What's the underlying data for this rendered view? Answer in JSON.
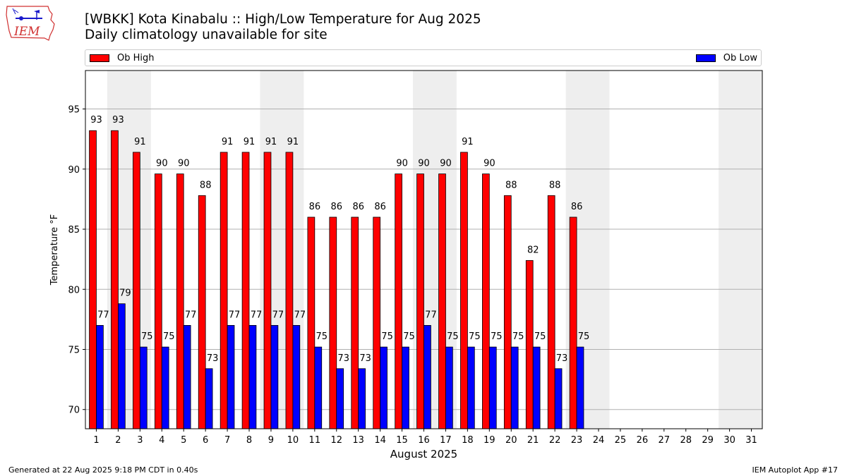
{
  "header": {
    "title": "[WBKK] Kota Kinabalu :: High/Low Temperature for Aug 2025",
    "subtitle": "Daily climatology unavailable for site"
  },
  "logo": {
    "text": "IEM"
  },
  "legend": {
    "high_label": "Ob High",
    "low_label": "Ob Low",
    "high_color": "#ff0000",
    "low_color": "#0000ff"
  },
  "footer": {
    "generated": "Generated at 22 Aug 2025 9:18 PM CDT in 0.40s",
    "app": "IEM Autoplot App #17"
  },
  "chart_data": {
    "type": "bar",
    "xlabel": "August 2025",
    "ylabel": "Temperature °F",
    "ylim": [
      68.4,
      98.2
    ],
    "yticks": [
      70,
      75,
      80,
      85,
      90,
      95
    ],
    "grid": "horizontal",
    "legend_position": "top",
    "days": [
      1,
      2,
      3,
      4,
      5,
      6,
      7,
      8,
      9,
      10,
      11,
      12,
      13,
      14,
      15,
      16,
      17,
      18,
      19,
      20,
      21,
      22,
      23,
      24,
      25,
      26,
      27,
      28,
      29,
      30,
      31
    ],
    "weekend_shaded_days": [
      [
        2,
        3
      ],
      [
        9,
        10
      ],
      [
        16,
        17
      ],
      [
        23,
        24
      ],
      [
        30,
        31
      ]
    ],
    "series": [
      {
        "name": "Ob High",
        "color": "#ff0000",
        "values": [
          93.2,
          93.2,
          91.4,
          89.6,
          89.6,
          87.8,
          91.4,
          91.4,
          91.4,
          91.4,
          86.0,
          86.0,
          86.0,
          86.0,
          89.6,
          89.6,
          89.6,
          91.4,
          89.6,
          87.8,
          82.4,
          87.8,
          86.0
        ],
        "labels": [
          "93",
          "93",
          "91",
          "90",
          "90",
          "88",
          "91",
          "91",
          "91",
          "91",
          "86",
          "86",
          "86",
          "86",
          "90",
          "90",
          "90",
          "91",
          "90",
          "88",
          "82",
          "88",
          "86"
        ]
      },
      {
        "name": "Ob Low",
        "color": "#0000ff",
        "values": [
          77.0,
          78.8,
          75.2,
          75.2,
          77.0,
          73.4,
          77.0,
          77.0,
          77.0,
          77.0,
          75.2,
          73.4,
          73.4,
          75.2,
          75.2,
          77.0,
          75.2,
          75.2,
          75.2,
          75.2,
          75.2,
          73.4,
          75.2
        ],
        "labels": [
          "77",
          "79",
          "75",
          "75",
          "77",
          "73",
          "77",
          "77",
          "77",
          "77",
          "75",
          "73",
          "73",
          "75",
          "75",
          "77",
          "75",
          "75",
          "75",
          "75",
          "75",
          "73",
          "75"
        ]
      }
    ]
  }
}
